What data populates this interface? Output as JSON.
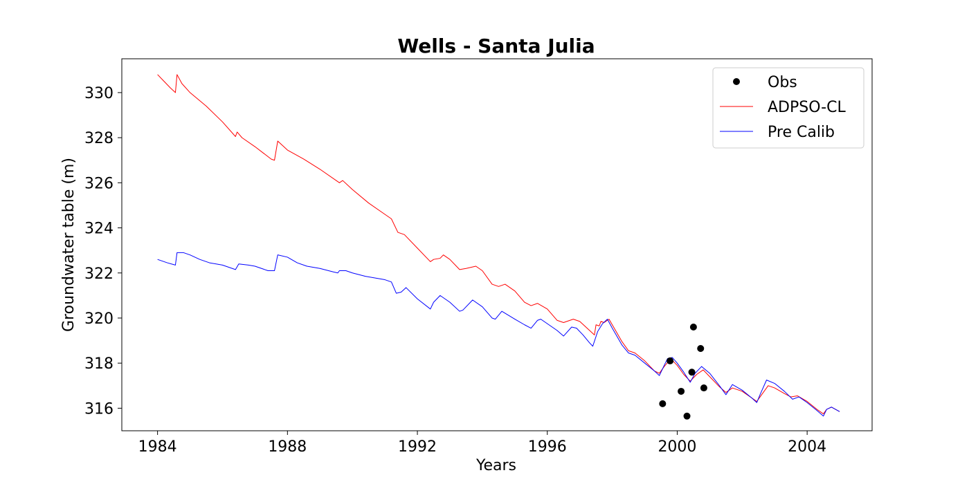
{
  "chart_data": {
    "type": "line",
    "title": "Wells - Santa Julia",
    "xlabel": "Years",
    "ylabel": "Groundwater table (m)",
    "xlim": [
      1982.9,
      2006.0
    ],
    "ylim": [
      315.0,
      331.5
    ],
    "xticks": [
      1984,
      1988,
      1992,
      1996,
      2000,
      2004
    ],
    "yticks": [
      316,
      318,
      320,
      322,
      324,
      326,
      328,
      330
    ],
    "grid": false,
    "legend_position": "top-right",
    "series": [
      {
        "name": "Obs",
        "kind": "scatter",
        "color": "#000000",
        "points": [
          [
            1999.55,
            316.2
          ],
          [
            1999.78,
            318.1
          ],
          [
            2000.12,
            316.75
          ],
          [
            2000.3,
            315.65
          ],
          [
            2000.45,
            317.6
          ],
          [
            2000.5,
            319.6
          ],
          [
            2000.72,
            318.65
          ],
          [
            2000.82,
            316.9
          ]
        ]
      },
      {
        "name": "ADPSO-CL",
        "kind": "line",
        "color": "#ff0000",
        "points": [
          [
            1984.0,
            330.8
          ],
          [
            1984.2,
            330.5
          ],
          [
            1984.4,
            330.2
          ],
          [
            1984.55,
            330.0
          ],
          [
            1984.6,
            330.8
          ],
          [
            1984.75,
            330.4
          ],
          [
            1985.0,
            330.0
          ],
          [
            1985.5,
            329.4
          ],
          [
            1986.0,
            328.7
          ],
          [
            1986.4,
            328.05
          ],
          [
            1986.45,
            328.25
          ],
          [
            1986.6,
            328.0
          ],
          [
            1987.0,
            327.6
          ],
          [
            1987.5,
            327.05
          ],
          [
            1987.6,
            327.0
          ],
          [
            1987.7,
            327.85
          ],
          [
            1988.0,
            327.45
          ],
          [
            1988.5,
            327.05
          ],
          [
            1989.0,
            326.6
          ],
          [
            1989.5,
            326.1
          ],
          [
            1989.6,
            326.0
          ],
          [
            1989.7,
            326.1
          ],
          [
            1990.0,
            325.7
          ],
          [
            1990.5,
            325.1
          ],
          [
            1991.0,
            324.6
          ],
          [
            1991.2,
            324.4
          ],
          [
            1991.4,
            323.8
          ],
          [
            1991.6,
            323.7
          ],
          [
            1992.0,
            323.1
          ],
          [
            1992.4,
            322.5
          ],
          [
            1992.5,
            322.6
          ],
          [
            1992.7,
            322.65
          ],
          [
            1992.8,
            322.8
          ],
          [
            1993.0,
            322.6
          ],
          [
            1993.3,
            322.15
          ],
          [
            1993.5,
            322.2
          ],
          [
            1993.8,
            322.3
          ],
          [
            1994.0,
            322.1
          ],
          [
            1994.3,
            321.5
          ],
          [
            1994.5,
            321.4
          ],
          [
            1994.7,
            321.5
          ],
          [
            1995.0,
            321.2
          ],
          [
            1995.3,
            320.7
          ],
          [
            1995.5,
            320.55
          ],
          [
            1995.7,
            320.65
          ],
          [
            1996.0,
            320.4
          ],
          [
            1996.3,
            319.9
          ],
          [
            1996.5,
            319.8
          ],
          [
            1996.8,
            319.95
          ],
          [
            1997.0,
            319.85
          ],
          [
            1997.3,
            319.45
          ],
          [
            1997.45,
            319.25
          ],
          [
            1997.5,
            319.7
          ],
          [
            1997.6,
            319.65
          ],
          [
            1997.65,
            319.85
          ],
          [
            1997.75,
            319.8
          ],
          [
            1997.9,
            319.95
          ],
          [
            1998.0,
            319.7
          ],
          [
            1998.3,
            318.95
          ],
          [
            1998.5,
            318.55
          ],
          [
            1998.7,
            318.45
          ],
          [
            1999.0,
            318.1
          ],
          [
            1999.3,
            317.65
          ],
          [
            1999.45,
            317.55
          ],
          [
            1999.6,
            317.85
          ],
          [
            1999.8,
            318.2
          ],
          [
            2000.0,
            317.9
          ],
          [
            2000.2,
            317.5
          ],
          [
            2000.4,
            317.2
          ],
          [
            2000.6,
            317.5
          ],
          [
            2000.8,
            317.7
          ],
          [
            2001.0,
            317.4
          ],
          [
            2001.3,
            316.95
          ],
          [
            2001.5,
            316.7
          ],
          [
            2001.7,
            316.9
          ],
          [
            2002.0,
            316.75
          ],
          [
            2002.3,
            316.45
          ],
          [
            2002.45,
            316.3
          ],
          [
            2002.55,
            316.5
          ],
          [
            2002.8,
            317.0
          ],
          [
            2003.0,
            316.9
          ],
          [
            2003.3,
            316.65
          ],
          [
            2003.5,
            316.5
          ],
          [
            2003.7,
            316.55
          ],
          [
            2004.0,
            316.3
          ],
          [
            2004.3,
            315.95
          ],
          [
            2004.5,
            315.75
          ],
          [
            2004.6,
            315.95
          ],
          [
            2004.75,
            316.05
          ],
          [
            2005.0,
            315.85
          ]
        ]
      },
      {
        "name": "Pre Calib",
        "kind": "line",
        "color": "#0000ff",
        "points": [
          [
            1984.0,
            322.6
          ],
          [
            1984.3,
            322.45
          ],
          [
            1984.55,
            322.35
          ],
          [
            1984.6,
            322.9
          ],
          [
            1984.8,
            322.9
          ],
          [
            1985.0,
            322.8
          ],
          [
            1985.3,
            322.6
          ],
          [
            1985.6,
            322.45
          ],
          [
            1986.0,
            322.35
          ],
          [
            1986.4,
            322.15
          ],
          [
            1986.5,
            322.4
          ],
          [
            1986.8,
            322.35
          ],
          [
            1987.0,
            322.3
          ],
          [
            1987.4,
            322.1
          ],
          [
            1987.6,
            322.1
          ],
          [
            1987.7,
            322.8
          ],
          [
            1988.0,
            322.7
          ],
          [
            1988.3,
            322.45
          ],
          [
            1988.6,
            322.3
          ],
          [
            1989.0,
            322.2
          ],
          [
            1989.4,
            322.05
          ],
          [
            1989.55,
            322.0
          ],
          [
            1989.6,
            322.1
          ],
          [
            1989.8,
            322.1
          ],
          [
            1990.0,
            322.0
          ],
          [
            1990.4,
            321.85
          ],
          [
            1990.8,
            321.75
          ],
          [
            1991.0,
            321.7
          ],
          [
            1991.2,
            321.6
          ],
          [
            1991.35,
            321.1
          ],
          [
            1991.5,
            321.15
          ],
          [
            1991.65,
            321.35
          ],
          [
            1992.0,
            320.85
          ],
          [
            1992.4,
            320.4
          ],
          [
            1992.5,
            320.7
          ],
          [
            1992.7,
            321.0
          ],
          [
            1993.0,
            320.7
          ],
          [
            1993.3,
            320.3
          ],
          [
            1993.4,
            320.35
          ],
          [
            1993.7,
            320.8
          ],
          [
            1994.0,
            320.5
          ],
          [
            1994.3,
            320.0
          ],
          [
            1994.4,
            319.95
          ],
          [
            1994.6,
            320.3
          ],
          [
            1995.0,
            319.95
          ],
          [
            1995.3,
            319.7
          ],
          [
            1995.5,
            319.55
          ],
          [
            1995.7,
            319.9
          ],
          [
            1995.8,
            319.95
          ],
          [
            1996.0,
            319.75
          ],
          [
            1996.3,
            319.45
          ],
          [
            1996.5,
            319.2
          ],
          [
            1996.75,
            319.6
          ],
          [
            1996.9,
            319.55
          ],
          [
            1997.1,
            319.25
          ],
          [
            1997.3,
            318.9
          ],
          [
            1997.4,
            318.75
          ],
          [
            1997.55,
            319.4
          ],
          [
            1997.7,
            319.75
          ],
          [
            1997.85,
            319.95
          ],
          [
            1998.0,
            319.55
          ],
          [
            1998.3,
            318.8
          ],
          [
            1998.5,
            318.45
          ],
          [
            1998.7,
            318.35
          ],
          [
            1999.0,
            318.0
          ],
          [
            1999.3,
            317.65
          ],
          [
            1999.45,
            317.45
          ],
          [
            1999.6,
            317.9
          ],
          [
            1999.7,
            318.2
          ],
          [
            1999.85,
            318.25
          ],
          [
            2000.0,
            318.0
          ],
          [
            2000.2,
            317.6
          ],
          [
            2000.4,
            317.15
          ],
          [
            2000.55,
            317.55
          ],
          [
            2000.75,
            317.85
          ],
          [
            2001.0,
            317.55
          ],
          [
            2001.3,
            317.0
          ],
          [
            2001.5,
            316.6
          ],
          [
            2001.7,
            317.05
          ],
          [
            2002.0,
            316.8
          ],
          [
            2002.3,
            316.45
          ],
          [
            2002.45,
            316.25
          ],
          [
            2002.55,
            316.6
          ],
          [
            2002.75,
            317.25
          ],
          [
            2003.0,
            317.1
          ],
          [
            2003.3,
            316.75
          ],
          [
            2003.55,
            316.4
          ],
          [
            2003.75,
            316.5
          ],
          [
            2004.0,
            316.25
          ],
          [
            2004.3,
            315.9
          ],
          [
            2004.5,
            315.65
          ],
          [
            2004.6,
            315.95
          ],
          [
            2004.75,
            316.05
          ],
          [
            2005.0,
            315.85
          ]
        ]
      }
    ]
  }
}
